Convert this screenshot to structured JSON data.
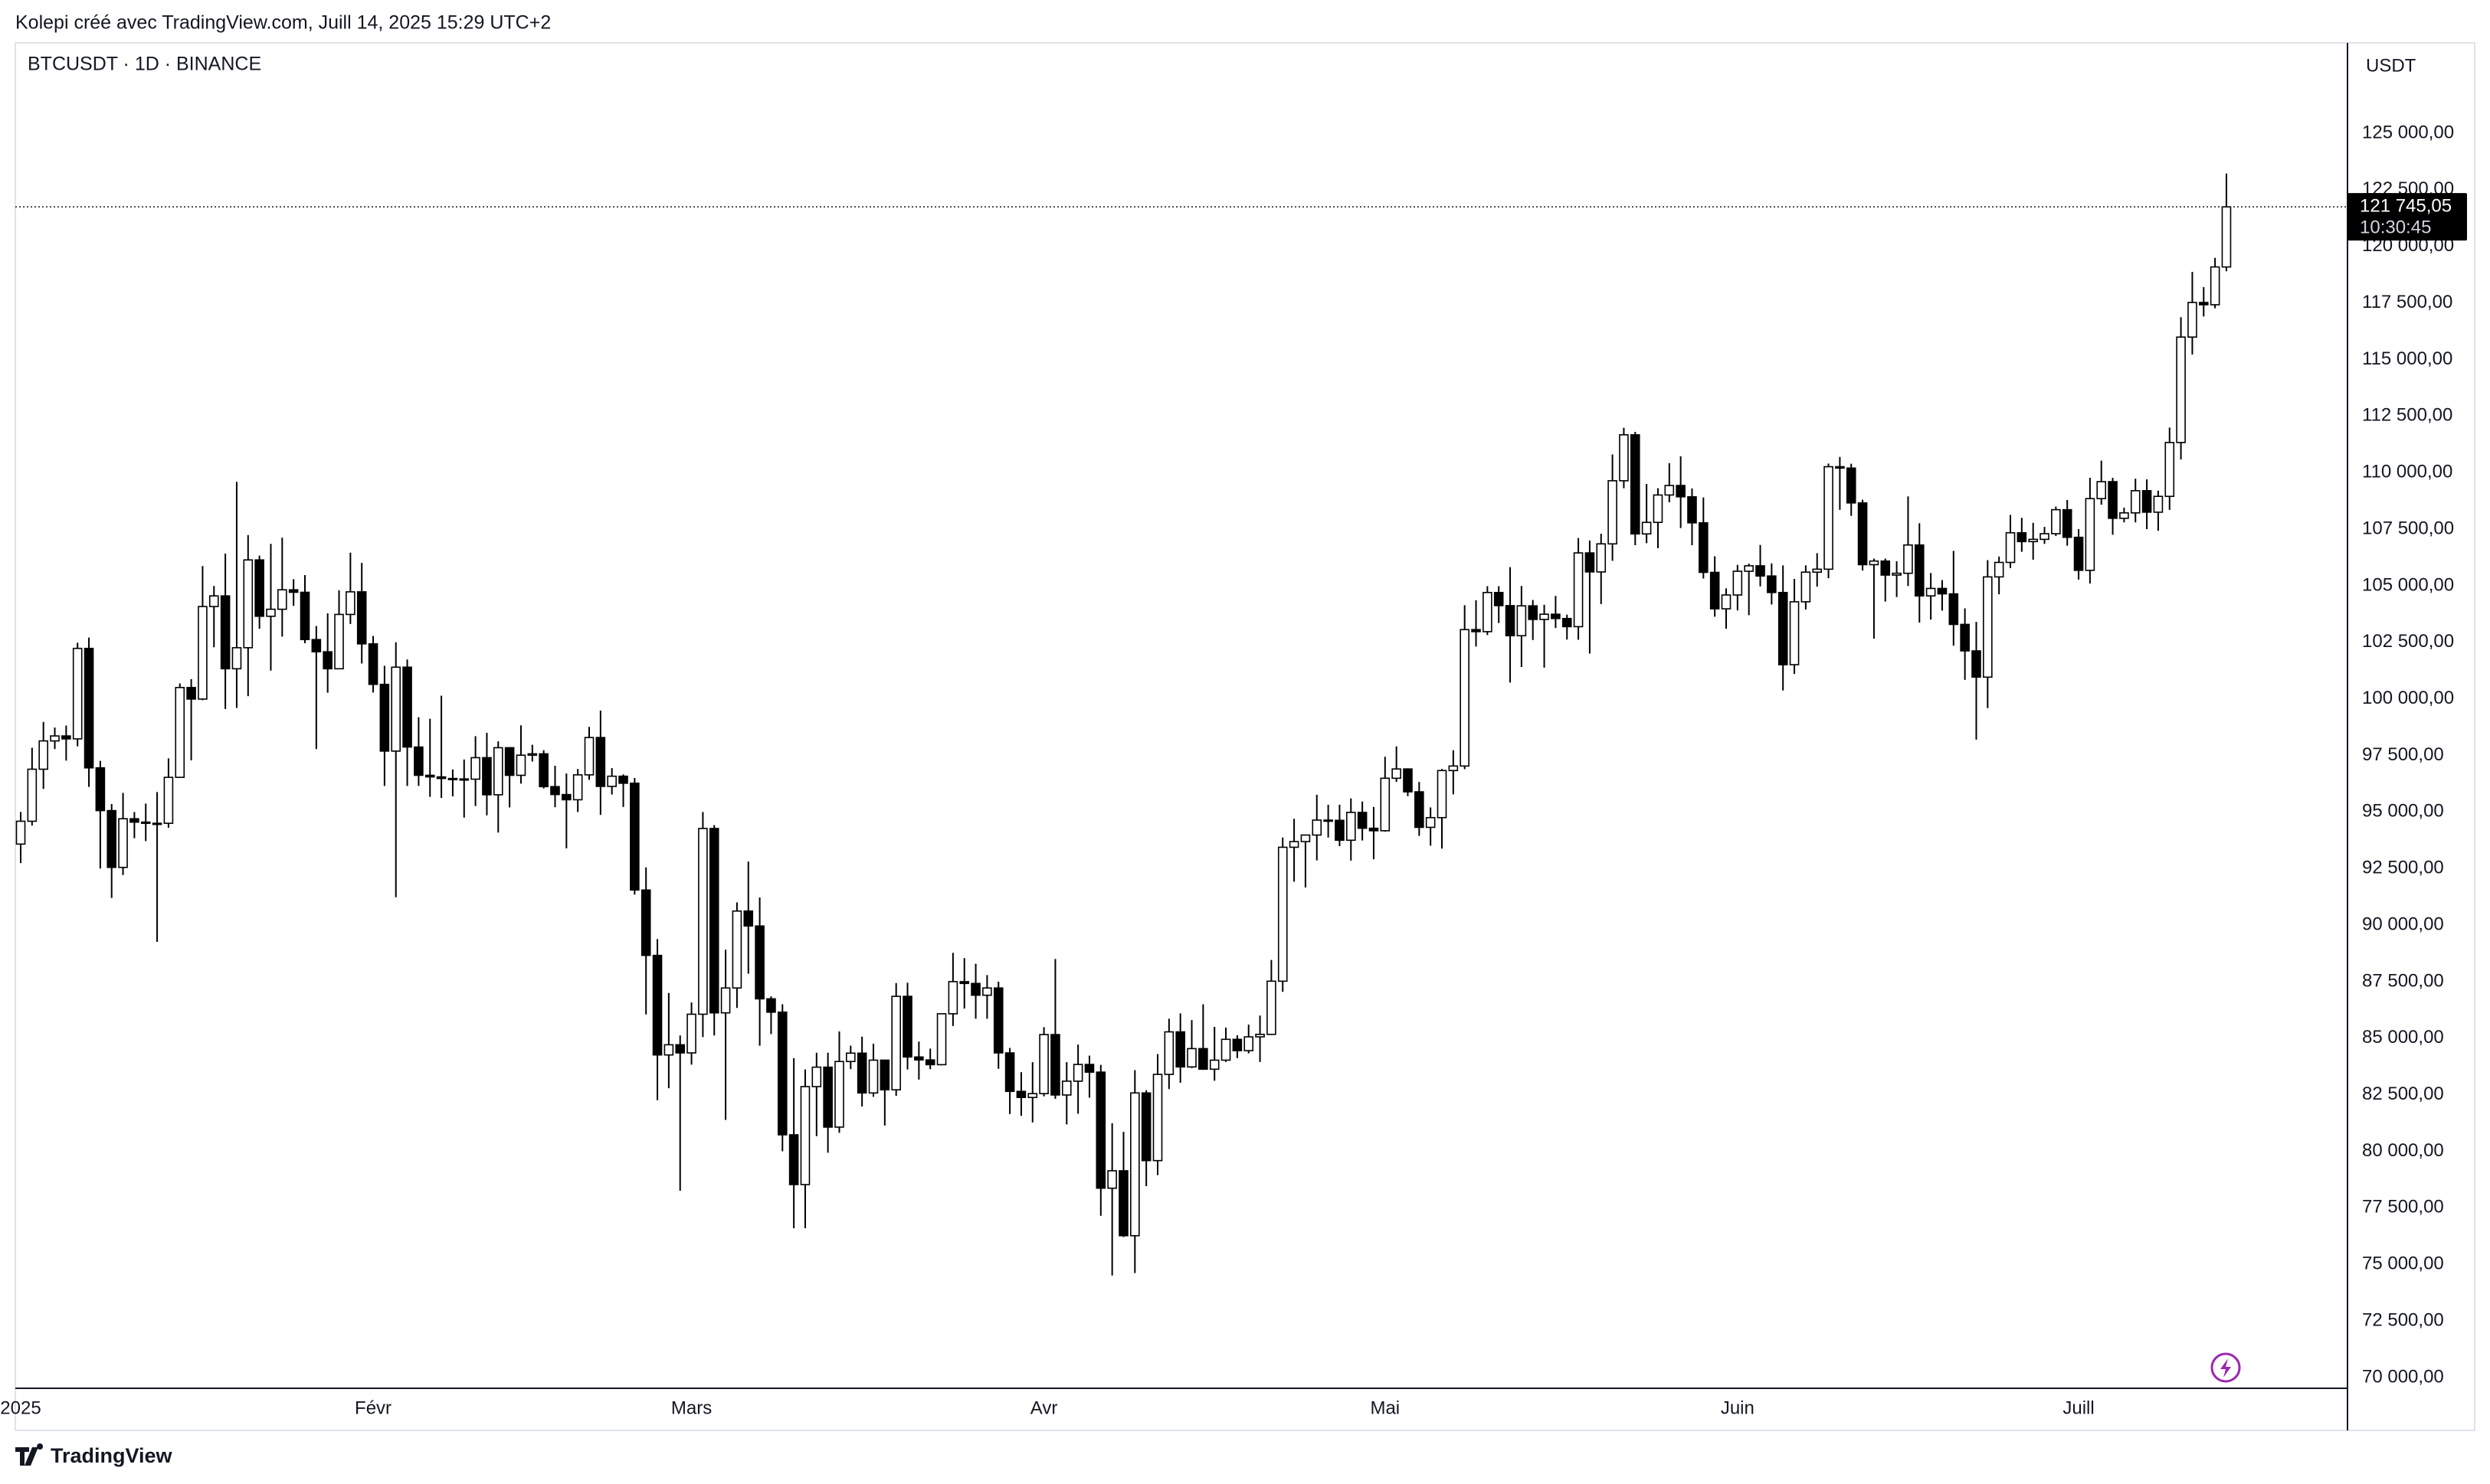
{
  "chart_data": {
    "type": "candlestick",
    "caption": "Kolepi créé avec TradingView.com, Juill 14, 2025 15:29 UTC+2",
    "title": "BTCUSDT · 1D · BINANCE",
    "currency": "USDT",
    "brand": "TradingView",
    "up_color": "#ffffff",
    "down_color": "#000000",
    "outline_color": "#000000",
    "grid": false,
    "categories": [
      "2025",
      null,
      null,
      null,
      null,
      null,
      null,
      null,
      null,
      null,
      null,
      null,
      null,
      null,
      null,
      null,
      null,
      null,
      null,
      null,
      null,
      null,
      null,
      null,
      null,
      null,
      null,
      null,
      null,
      null,
      null,
      "Févr",
      null,
      null,
      null,
      null,
      null,
      null,
      null,
      null,
      null,
      null,
      null,
      null,
      null,
      null,
      null,
      null,
      null,
      null,
      null,
      null,
      null,
      null,
      null,
      null,
      null,
      null,
      null,
      "Mars",
      null,
      null,
      null,
      null,
      null,
      null,
      null,
      null,
      null,
      null,
      null,
      null,
      null,
      null,
      null,
      null,
      null,
      null,
      null,
      null,
      null,
      null,
      null,
      null,
      null,
      null,
      null,
      null,
      null,
      null,
      "Avr",
      null,
      null,
      null,
      null,
      null,
      null,
      null,
      null,
      null,
      null,
      null,
      null,
      null,
      null,
      null,
      null,
      null,
      null,
      null,
      null,
      null,
      null,
      null,
      null,
      null,
      null,
      null,
      null,
      null,
      "Mai",
      null,
      null,
      null,
      null,
      null,
      null,
      null,
      null,
      null,
      null,
      null,
      null,
      null,
      null,
      null,
      null,
      null,
      null,
      null,
      null,
      null,
      null,
      null,
      null,
      null,
      null,
      null,
      null,
      null,
      null,
      "Juin",
      null,
      null,
      null,
      null,
      null,
      null,
      null,
      null,
      null,
      null,
      null,
      null,
      null,
      null,
      null,
      null,
      null,
      null,
      null,
      null,
      null,
      null,
      null,
      null,
      null,
      null,
      null,
      null,
      null,
      "Juill",
      null,
      null,
      null,
      null,
      null,
      null,
      null,
      null,
      null,
      null,
      null,
      null,
      null
    ],
    "open": [
      93580,
      94590,
      96890,
      98140,
      98360,
      98230,
      102230,
      96950,
      95060,
      92550,
      94700,
      94550,
      94500,
      94500,
      96530,
      100500,
      99990,
      104080,
      104550,
      101330,
      102260,
      106140,
      103650,
      103960,
      104820,
      104710,
      102620,
      102080,
      101330,
      103730,
      104730,
      102430,
      100640,
      97690,
      101400,
      97870,
      96620,
      96550,
      96480,
      96460,
      96450,
      97400,
      95760,
      97840,
      96620,
      97510,
      97570,
      96120,
      95770,
      95540,
      96640,
      98290,
      96130,
      96580,
      96270,
      91550,
      88660,
      84260,
      84710,
      84350,
      86060,
      94270,
      86120,
      87220,
      90620,
      89960,
      86740,
      86150,
      80730,
      78530,
      82860,
      83720,
      81070,
      83970,
      84340,
      82580,
      84030,
      82720,
      86850,
      84170,
      84040,
      83830,
      86080,
      87500,
      87420,
      86900,
      87220,
      84350,
      82650,
      82380,
      82550,
      85160,
      82490,
      83100,
      83840,
      83500,
      78370,
      79140,
      76270,
      82580,
      79590,
      83400,
      85280,
      83730,
      84540,
      83630,
      84030,
      84950,
      84450,
      85060,
      85170,
      87520,
      93440,
      93690,
      93980,
      94640,
      94630,
      93750,
      94980,
      94280,
      94170,
      96490,
      96900,
      95890,
      94320,
      94750,
      96830,
      97030,
      103060,
      102970,
      104700,
      104120,
      102790,
      104110,
      103510,
      103740,
      103550,
      103190,
      106450,
      105610,
      106850,
      109640,
      111670,
      107290,
      107800,
      109010,
      109430,
      108930,
      107780,
      105590,
      103980,
      104590,
      105640,
      105880,
      105430,
      104700,
      101510,
      104290,
      105600,
      105730,
      110260,
      110200,
      108660,
      105930,
      106090,
      105470,
      105550,
      106800,
      104550,
      104880,
      104640,
      103290,
      102120,
      100960,
      105390,
      106030,
      107340,
      106950,
      107050,
      107300,
      108360,
      107140,
      105680,
      108850,
      109600,
      107980,
      108220,
      109200,
      108250,
      108950,
      111330,
      115990,
      117520,
      117420,
      119090
    ],
    "high": [
      95000,
      97840,
      98980,
      98730,
      98820,
      102480,
      102710,
      97260,
      95350,
      95840,
      95000,
      95370,
      95880,
      97370,
      100680,
      100870,
      105870,
      104990,
      106420,
      109590,
      107240,
      106330,
      106850,
      107120,
      105290,
      105470,
      103220,
      103780,
      104800,
      106460,
      106010,
      102780,
      101460,
      102500,
      101740,
      99190,
      99120,
      100140,
      96880,
      97320,
      98350,
      98500,
      98120,
      97250,
      98830,
      97970,
      97730,
      97040,
      96700,
      96900,
      98760,
      99480,
      96940,
      96660,
      96500,
      92550,
      89380,
      87000,
      85120,
      86580,
      95000,
      94420,
      88910,
      91000,
      92810,
      91220,
      86850,
      86500,
      84120,
      83620,
      84360,
      84360,
      85300,
      84670,
      85070,
      84760,
      84030,
      87440,
      87450,
      84850,
      84540,
      86100,
      88770,
      88540,
      88290,
      87790,
      87500,
      84570,
      83500,
      83940,
      85490,
      88500,
      83940,
      84720,
      84230,
      83820,
      81240,
      80860,
      83590,
      82700,
      84300,
      85860,
      86100,
      85800,
      86500,
      85500,
      85470,
      85130,
      85600,
      86000,
      88460,
      93870,
      94700,
      94000,
      95760,
      95320,
      95320,
      95600,
      95460,
      95220,
      97440,
      97900,
      96930,
      96330,
      95200,
      96900,
      97730,
      104140,
      104360,
      104980,
      104980,
      105820,
      104990,
      104370,
      104160,
      104550,
      103720,
      107110,
      107000,
      107300,
      110800,
      111980,
      111800,
      109500,
      109310,
      110420,
      110720,
      109300,
      108900,
      106300,
      104880,
      105920,
      105980,
      106800,
      105990,
      105900,
      105300,
      105900,
      106440,
      110400,
      110690,
      110390,
      108800,
      106200,
      106200,
      106080,
      108950,
      107760,
      105560,
      105250,
      106540,
      104000,
      103400,
      106130,
      106290,
      108130,
      108000,
      107780,
      107600,
      108500,
      108790,
      107500,
      109770,
      110530,
      109770,
      108450,
      109730,
      109700,
      109200,
      111990,
      116870,
      118870,
      118200,
      119490,
      123220
    ],
    "low": [
      92740,
      94400,
      96020,
      97780,
      97270,
      97900,
      96110,
      92500,
      91200,
      92210,
      93840,
      93710,
      89260,
      94300,
      96500,
      97280,
      99940,
      102280,
      99550,
      99600,
      100120,
      103100,
      101250,
      102750,
      104110,
      102460,
      97780,
      100270,
      101330,
      103310,
      101560,
      100280,
      96150,
      91230,
      96150,
      96150,
      95670,
      95620,
      95690,
      94750,
      95260,
      94850,
      94090,
      95200,
      96250,
      97230,
      96040,
      95210,
      93390,
      95000,
      96420,
      94870,
      95770,
      95220,
      91350,
      86050,
      82260,
      82790,
      78260,
      83830,
      85050,
      85120,
      81390,
      86340,
      87850,
      84670,
      85180,
      80000,
      76600,
      76600,
      80670,
      79940,
      80820,
      83630,
      81980,
      82410,
      81140,
      82450,
      83620,
      83170,
      83630,
      83800,
      85540,
      86310,
      85860,
      85860,
      83650,
      81650,
      81570,
      81280,
      82430,
      82320,
      81190,
      81660,
      82370,
      77150,
      74510,
      76210,
      74620,
      78460,
      78950,
      82750,
      83030,
      83680,
      83600,
      83120,
      83950,
      84120,
      84330,
      83950,
      85140,
      87050,
      91920,
      91660,
      92860,
      93870,
      93490,
      92850,
      93740,
      92910,
      94130,
      96330,
      95700,
      93940,
      93510,
      93380,
      95780,
      96890,
      102310,
      102820,
      103350,
      100720,
      101410,
      102600,
      101380,
      103130,
      102620,
      102610,
      102000,
      104190,
      106100,
      109310,
      106790,
      106880,
      106660,
      108690,
      107550,
      106790,
      105320,
      103630,
      103100,
      103910,
      103700,
      104970,
      104170,
      100370,
      101100,
      103950,
      104960,
      105330,
      108350,
      108090,
      105670,
      102660,
      104300,
      104500,
      104990,
      103370,
      103500,
      103900,
      102350,
      100840,
      98200,
      99590,
      104620,
      105780,
      106500,
      106150,
      106850,
      107200,
      106770,
      105270,
      105100,
      108580,
      107250,
      107800,
      107800,
      107500,
      107430,
      108350,
      110580,
      115220,
      116900,
      117260,
      118900
    ],
    "close": [
      94590,
      96890,
      98140,
      98360,
      98230,
      102230,
      96950,
      95060,
      92550,
      94700,
      94550,
      94500,
      94500,
      96530,
      100500,
      99990,
      104080,
      104550,
      101330,
      102260,
      106140,
      103650,
      103960,
      104820,
      104710,
      102620,
      102080,
      101330,
      103730,
      104730,
      102430,
      100640,
      97690,
      101400,
      97870,
      96620,
      96550,
      96480,
      96460,
      96450,
      97400,
      95760,
      97840,
      96620,
      97510,
      97570,
      96120,
      95770,
      95540,
      96640,
      98290,
      96130,
      96580,
      96270,
      91550,
      88660,
      84260,
      84710,
      84350,
      86060,
      94270,
      86120,
      87220,
      90620,
      89960,
      86740,
      86150,
      80730,
      78530,
      82860,
      83720,
      81070,
      83970,
      84340,
      82580,
      84030,
      82720,
      86850,
      84170,
      84040,
      83830,
      86080,
      87500,
      87420,
      86900,
      87220,
      84350,
      82650,
      82380,
      82550,
      85160,
      82490,
      83100,
      83840,
      83500,
      78370,
      79140,
      76270,
      82580,
      79590,
      83400,
      85280,
      83730,
      84540,
      83630,
      84030,
      84950,
      84450,
      85060,
      85170,
      87520,
      93440,
      93690,
      93980,
      94640,
      94630,
      93750,
      94980,
      94280,
      94170,
      96490,
      96900,
      95890,
      94320,
      94750,
      96830,
      97030,
      103060,
      102970,
      104700,
      104120,
      102790,
      104110,
      103510,
      103740,
      103550,
      103190,
      106450,
      105610,
      106850,
      109640,
      111670,
      107290,
      107800,
      109010,
      109430,
      108930,
      107780,
      105590,
      103980,
      104590,
      105640,
      105880,
      105430,
      104700,
      101510,
      104290,
      105600,
      105730,
      110260,
      110200,
      108660,
      105930,
      106090,
      105470,
      105550,
      106800,
      104550,
      104880,
      104640,
      103290,
      102120,
      100960,
      105390,
      106030,
      107340,
      106950,
      107050,
      107300,
      108360,
      107140,
      105680,
      108850,
      109600,
      107980,
      108220,
      109200,
      108250,
      108950,
      111330,
      115990,
      117520,
      117420,
      119090,
      121745.05
    ],
    "last_price": {
      "value": 121745.05,
      "label": "121 745,05"
    },
    "countdown": "10:30:45",
    "ylim": [
      69526,
      128994
    ],
    "yticks": [
      {
        "value": 70000,
        "label": "70 000,00"
      },
      {
        "value": 72500,
        "label": "72 500,00"
      },
      {
        "value": 75000,
        "label": "75 000,00"
      },
      {
        "value": 77500,
        "label": "77 500,00"
      },
      {
        "value": 80000,
        "label": "80 000,00"
      },
      {
        "value": 82500,
        "label": "82 500,00"
      },
      {
        "value": 85000,
        "label": "85 000,00"
      },
      {
        "value": 87500,
        "label": "87 500,00"
      },
      {
        "value": 90000,
        "label": "90 000,00"
      },
      {
        "value": 92500,
        "label": "92 500,00"
      },
      {
        "value": 95000,
        "label": "95 000,00"
      },
      {
        "value": 97500,
        "label": "97 500,00"
      },
      {
        "value": 100000,
        "label": "100 000,00"
      },
      {
        "value": 102500,
        "label": "102 500,00"
      },
      {
        "value": 105000,
        "label": "105 000,00"
      },
      {
        "value": 107500,
        "label": "107 500,00"
      },
      {
        "value": 110000,
        "label": "110 000,00"
      },
      {
        "value": 112500,
        "label": "112 500,00"
      },
      {
        "value": 115000,
        "label": "115 000,00"
      },
      {
        "value": 117500,
        "label": "117 500,00"
      },
      {
        "value": 120000,
        "label": "120 000,00"
      },
      {
        "value": 122500,
        "label": "122 500,00"
      },
      {
        "value": 125000,
        "label": "125 000,00"
      }
    ]
  }
}
